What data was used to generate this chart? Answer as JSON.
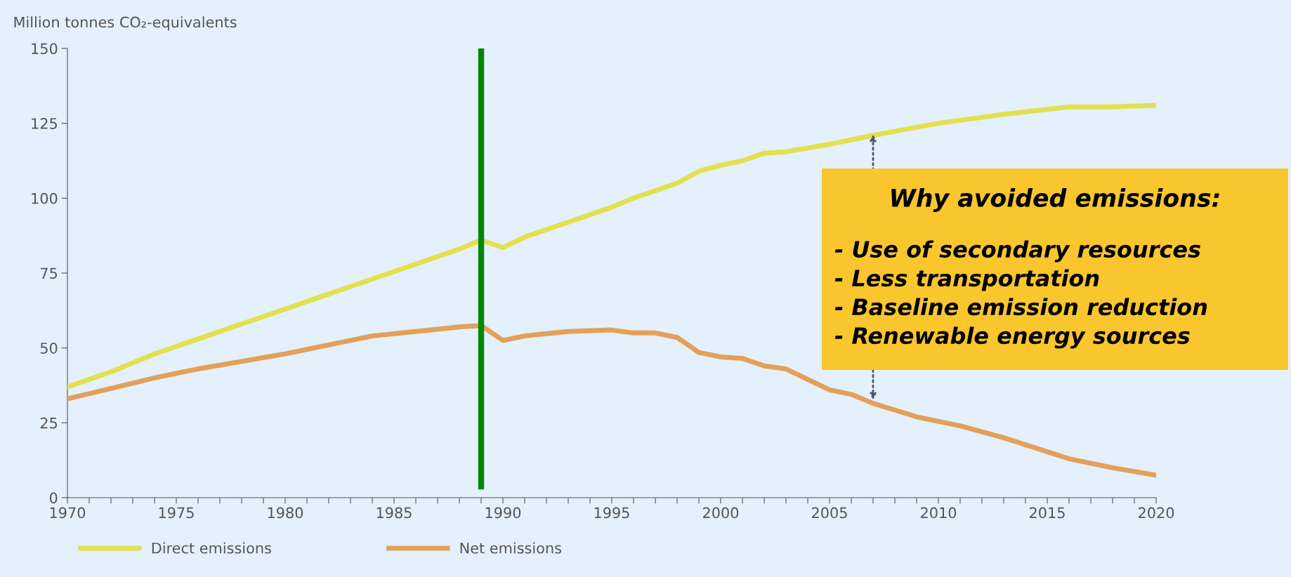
{
  "chart_data": {
    "type": "line",
    "ylabel": "Million tonnes CO₂-equivalents",
    "xlim": [
      1970,
      2020
    ],
    "xticks": [
      1970,
      {
        "value": 1971,
        "label": null
      },
      {
        "value": 1972,
        "label": null
      },
      {
        "value": 1973,
        "label": null
      },
      {
        "value": 1974,
        "label": null
      },
      1975,
      {
        "value": 1976,
        "label": null
      },
      {
        "value": 1977,
        "label": null
      },
      {
        "value": 1978,
        "label": null
      },
      {
        "value": 1979,
        "label": null
      },
      1980,
      {
        "value": 1981,
        "label": null
      },
      {
        "value": 1982,
        "label": null
      },
      {
        "value": 1983,
        "label": null
      },
      {
        "value": 1984,
        "label": null
      },
      1985,
      {
        "value": 1986,
        "label": null
      },
      {
        "value": 1987,
        "label": null
      },
      {
        "value": 1988,
        "label": null
      },
      {
        "value": 1989,
        "label": null
      },
      1990,
      {
        "value": 1991,
        "label": null
      },
      {
        "value": 1992,
        "label": null
      },
      {
        "value": 1993,
        "label": null
      },
      {
        "value": 1994,
        "label": null
      },
      1995,
      {
        "value": 1996,
        "label": null
      },
      {
        "value": 1997,
        "label": null
      },
      {
        "value": 1998,
        "label": null
      },
      {
        "value": 1999,
        "label": null
      },
      2000,
      {
        "value": 2001,
        "label": null
      },
      {
        "value": 2002,
        "label": null
      },
      {
        "value": 2003,
        "label": null
      },
      {
        "value": 2004,
        "label": null
      },
      2005,
      {
        "value": 2006,
        "label": null
      },
      {
        "value": 2007,
        "label": null
      },
      {
        "value": 2008,
        "label": null
      },
      {
        "value": 2009,
        "label": null
      },
      2010,
      {
        "value": 2011,
        "label": null
      },
      {
        "value": 2012,
        "label": null
      },
      {
        "value": 2013,
        "label": null
      },
      {
        "value": 2014,
        "label": null
      },
      2015,
      {
        "value": 2016,
        "label": null
      },
      {
        "value": 2017,
        "label": null
      },
      {
        "value": 2018,
        "label": null
      },
      {
        "value": 2019,
        "label": null
      },
      2020
    ],
    "ylim": [
      0,
      150
    ],
    "yticks": [
      0,
      25,
      50,
      75,
      100,
      125,
      150
    ],
    "grid": false,
    "legend": "bottom",
    "marker": "none",
    "line_style": "solid",
    "series": [
      {
        "name": "Direct emissions",
        "color": "#e3e04f",
        "x": [
          1970,
          1972,
          1974,
          1976,
          1978,
          1980,
          1982,
          1984,
          1986,
          1988,
          1989,
          1990,
          1991,
          1993,
          1995,
          1996,
          1998,
          1999,
          2000,
          2001,
          2002,
          2003,
          2005,
          2007,
          2010,
          2013,
          2016,
          2018,
          2020
        ],
        "values": [
          37,
          42,
          48,
          53,
          58,
          63,
          68,
          73,
          78,
          83,
          86,
          83.5,
          87,
          92,
          97,
          100,
          105,
          109,
          111,
          112.5,
          115,
          115.5,
          118,
          121,
          125,
          128,
          130.5,
          130.5,
          131
        ]
      },
      {
        "name": "Net emissions",
        "color": "#e3a05a",
        "x": [
          1970,
          1972,
          1974,
          1976,
          1978,
          1980,
          1982,
          1984,
          1986,
          1988,
          1989,
          1990,
          1991,
          1993,
          1995,
          1996,
          1997,
          1998,
          1999,
          2000,
          2001,
          2002,
          2003,
          2005,
          2006,
          2007,
          2009,
          2011,
          2013,
          2016,
          2018,
          2020
        ],
        "values": [
          33,
          36.5,
          40,
          43,
          45.5,
          48,
          51,
          54,
          55.5,
          57,
          57.5,
          52.5,
          54,
          55.5,
          56,
          55,
          55,
          53.5,
          48.5,
          47,
          46.5,
          44,
          43,
          36,
          34.5,
          31.5,
          27,
          24,
          20,
          13,
          10,
          7.5
        ]
      }
    ],
    "ref_lines": [
      {
        "axis": "x",
        "value": 1989,
        "color": "#008800"
      }
    ],
    "annotations": [
      "Why avoided emissions:",
      "- Use of secondary resources",
      "- Less transportation",
      "- Baseline emission reduction",
      "- Renewable energy sources"
    ]
  }
}
